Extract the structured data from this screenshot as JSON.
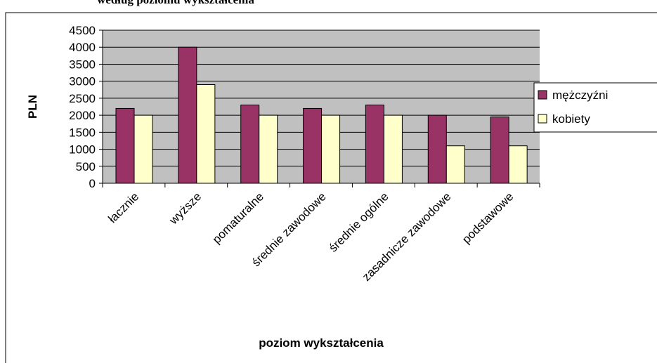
{
  "chart_data": {
    "type": "bar",
    "title": "według poziomu wykształcenia",
    "xlabel": "poziom wykształcenia",
    "ylabel": "PLN",
    "categories": [
      "łacznie",
      "wyższe",
      "pomaturalne",
      "średnie zawodowe",
      "średnie ogólne",
      "zasadnicze zawodowe",
      "podstawowe"
    ],
    "series": [
      {
        "name": "mężczyźni",
        "color": "#993366",
        "values": [
          2200,
          4000,
          2300,
          2200,
          2300,
          2000,
          1950
        ]
      },
      {
        "name": "kobiety",
        "color": "#ffffcc",
        "values": [
          2000,
          2900,
          2000,
          2000,
          2000,
          1100,
          1100
        ]
      }
    ],
    "ylim": [
      0,
      4500
    ],
    "yticks": [
      0,
      500,
      1000,
      1500,
      2000,
      2500,
      3000,
      3500,
      4000,
      4500
    ],
    "grid": true,
    "legend": "right"
  }
}
